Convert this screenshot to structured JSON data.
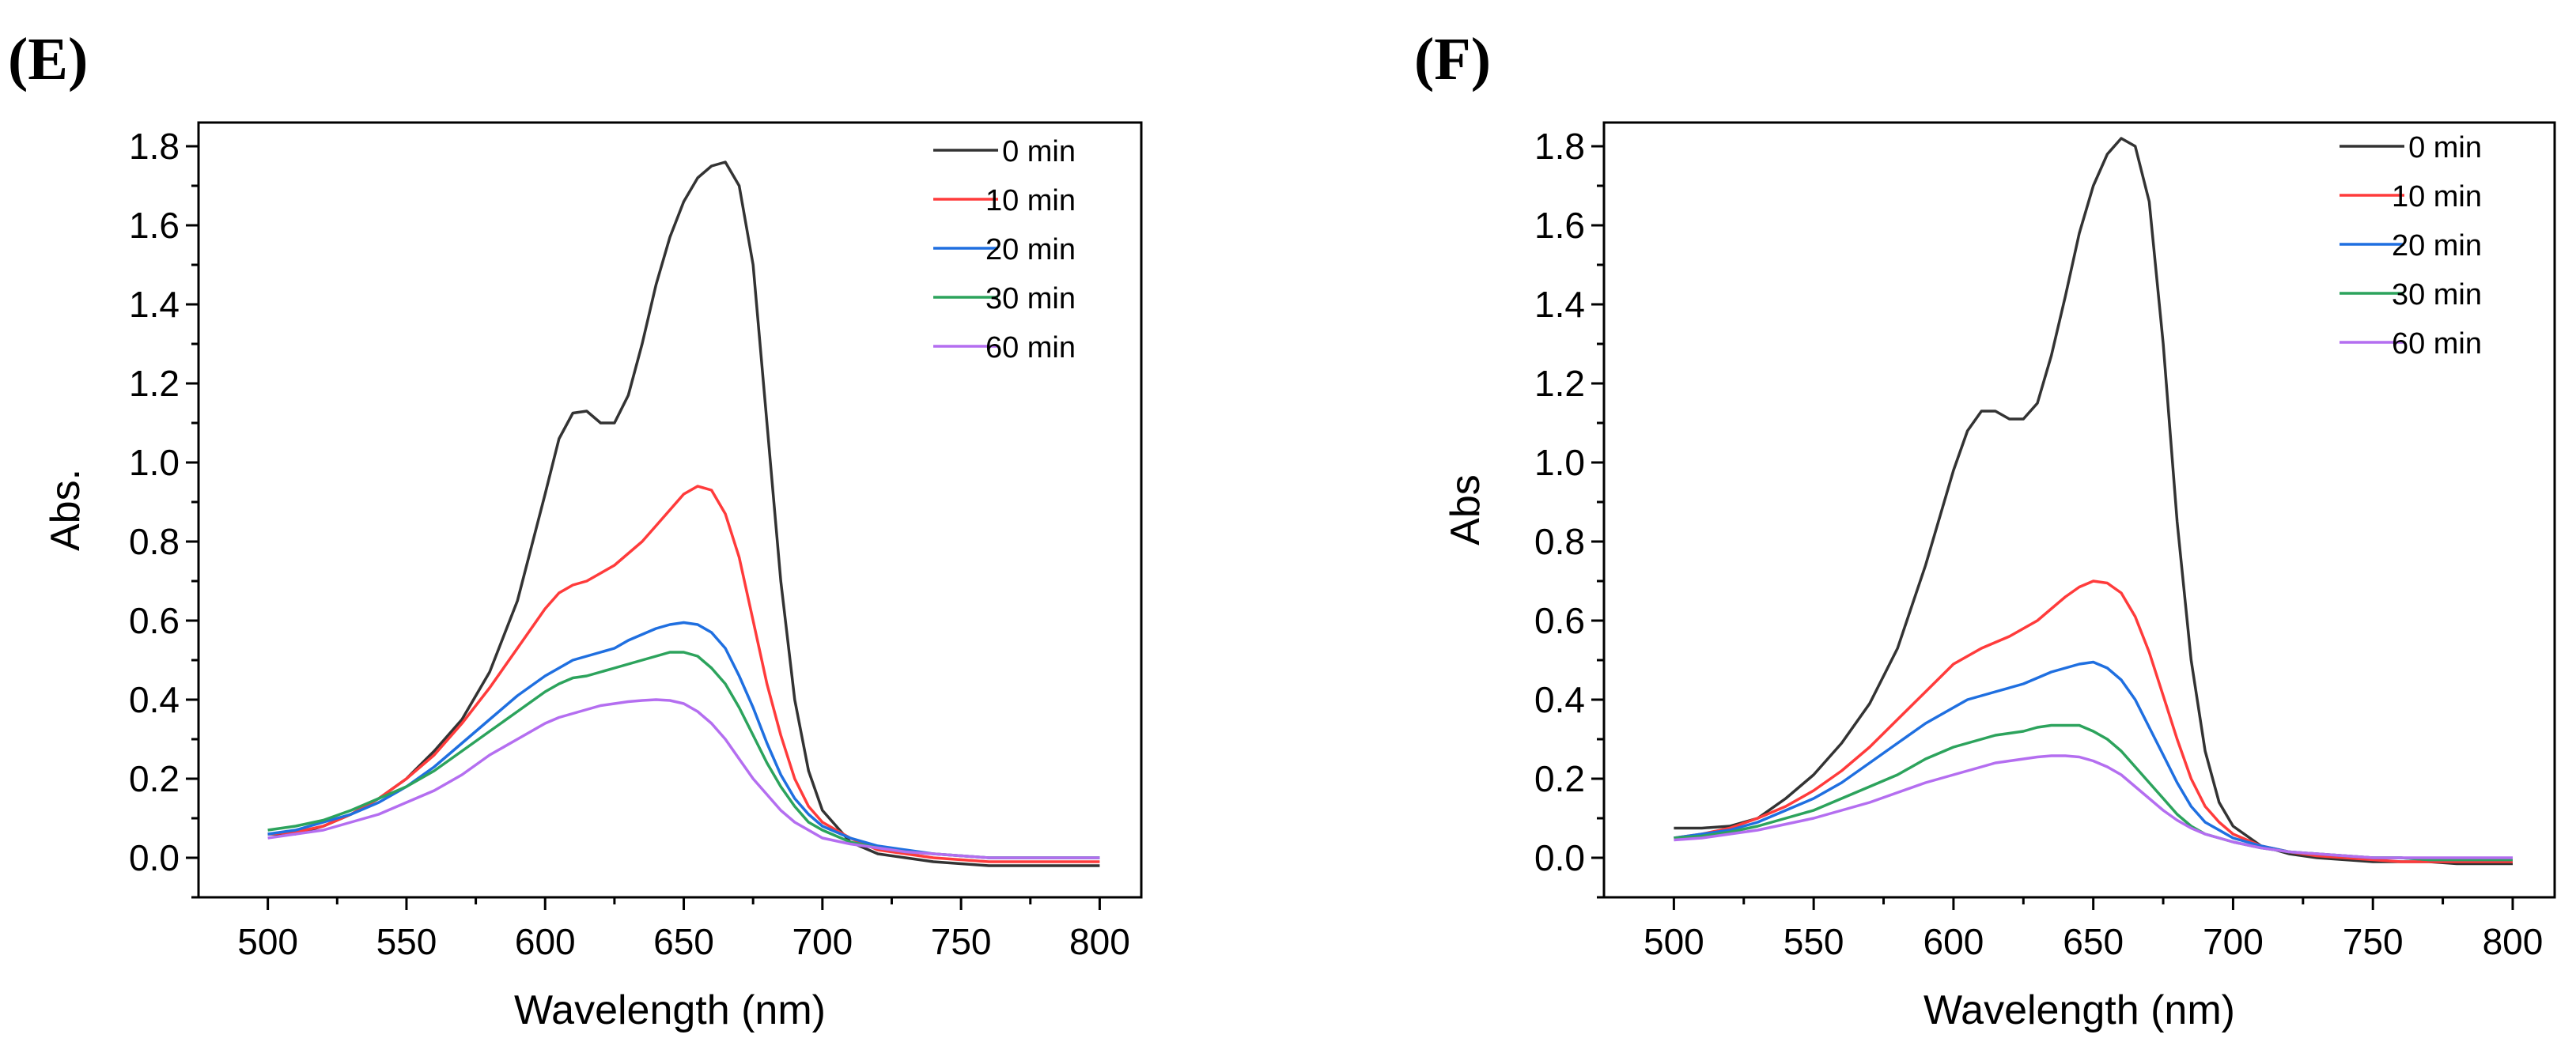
{
  "panels": {
    "e": {
      "label": "(E)"
    },
    "f": {
      "label": "(F)"
    }
  },
  "chart_data": [
    {
      "type": "line",
      "panel": "(E)",
      "xlabel": "Wavelength (nm)",
      "ylabel": "Abs.",
      "xlim": [
        475,
        815
      ],
      "ylim": [
        -0.1,
        1.86
      ],
      "xticks": [
        500,
        550,
        600,
        650,
        700,
        750,
        800
      ],
      "yticks": [
        0.0,
        0.2,
        0.4,
        0.6,
        0.8,
        1.0,
        1.2,
        1.4,
        1.6,
        1.8
      ],
      "x": [
        500,
        510,
        520,
        530,
        540,
        550,
        560,
        570,
        580,
        590,
        600,
        605,
        610,
        615,
        620,
        625,
        630,
        635,
        640,
        645,
        650,
        655,
        660,
        665,
        670,
        675,
        680,
        685,
        690,
        695,
        700,
        710,
        720,
        730,
        740,
        750,
        760,
        770,
        780,
        790,
        800
      ],
      "series": [
        {
          "name": "0 min",
          "color": "#333333",
          "values": [
            0.06,
            0.06,
            0.08,
            0.11,
            0.15,
            0.2,
            0.27,
            0.35,
            0.47,
            0.65,
            0.92,
            1.06,
            1.125,
            1.13,
            1.1,
            1.1,
            1.17,
            1.3,
            1.45,
            1.57,
            1.66,
            1.72,
            1.75,
            1.76,
            1.7,
            1.5,
            1.1,
            0.7,
            0.4,
            0.22,
            0.12,
            0.04,
            0.01,
            0.0,
            -0.01,
            -0.015,
            -0.02,
            -0.02,
            -0.02,
            -0.02,
            -0.02
          ]
        },
        {
          "name": "10 min",
          "color": "#ff3b3b",
          "values": [
            0.06,
            0.065,
            0.08,
            0.11,
            0.15,
            0.2,
            0.26,
            0.34,
            0.43,
            0.53,
            0.63,
            0.67,
            0.69,
            0.7,
            0.72,
            0.74,
            0.77,
            0.8,
            0.84,
            0.88,
            0.92,
            0.94,
            0.93,
            0.87,
            0.76,
            0.6,
            0.44,
            0.31,
            0.2,
            0.13,
            0.09,
            0.05,
            0.02,
            0.01,
            0.0,
            -0.005,
            -0.01,
            -0.01,
            -0.01,
            -0.01,
            -0.01
          ]
        },
        {
          "name": "20 min",
          "color": "#1f6fe0",
          "values": [
            0.06,
            0.07,
            0.09,
            0.11,
            0.14,
            0.18,
            0.23,
            0.29,
            0.35,
            0.41,
            0.46,
            0.48,
            0.5,
            0.51,
            0.52,
            0.53,
            0.55,
            0.565,
            0.58,
            0.59,
            0.595,
            0.59,
            0.57,
            0.53,
            0.46,
            0.38,
            0.29,
            0.21,
            0.15,
            0.11,
            0.08,
            0.05,
            0.03,
            0.02,
            0.01,
            0.005,
            0.0,
            0.0,
            0.0,
            0.0,
            0.0
          ]
        },
        {
          "name": "30 min",
          "color": "#2ca35c",
          "values": [
            0.07,
            0.08,
            0.095,
            0.12,
            0.15,
            0.18,
            0.22,
            0.27,
            0.32,
            0.37,
            0.42,
            0.44,
            0.455,
            0.46,
            0.47,
            0.48,
            0.49,
            0.5,
            0.51,
            0.52,
            0.52,
            0.51,
            0.48,
            0.44,
            0.38,
            0.31,
            0.24,
            0.18,
            0.13,
            0.09,
            0.07,
            0.04,
            0.025,
            0.015,
            0.01,
            0.005,
            0.0,
            0.0,
            0.0,
            0.0,
            0.0
          ]
        },
        {
          "name": "60 min",
          "color": "#b46ef0",
          "values": [
            0.05,
            0.06,
            0.07,
            0.09,
            0.11,
            0.14,
            0.17,
            0.21,
            0.26,
            0.3,
            0.34,
            0.355,
            0.365,
            0.375,
            0.385,
            0.39,
            0.395,
            0.398,
            0.4,
            0.398,
            0.39,
            0.37,
            0.34,
            0.3,
            0.25,
            0.2,
            0.16,
            0.12,
            0.09,
            0.07,
            0.05,
            0.035,
            0.025,
            0.015,
            0.01,
            0.005,
            0.0,
            0.0,
            0.0,
            0.0,
            0.0
          ]
        }
      ]
    },
    {
      "type": "line",
      "panel": "(F)",
      "xlabel": "Wavelength (nm)",
      "ylabel": "Abs",
      "xlim": [
        475,
        815
      ],
      "ylim": [
        -0.1,
        1.86
      ],
      "xticks": [
        500,
        550,
        600,
        650,
        700,
        750,
        800
      ],
      "yticks": [
        0.0,
        0.2,
        0.4,
        0.6,
        0.8,
        1.0,
        1.2,
        1.4,
        1.6,
        1.8
      ],
      "x": [
        500,
        510,
        520,
        530,
        540,
        550,
        560,
        570,
        580,
        590,
        600,
        605,
        610,
        615,
        620,
        625,
        630,
        635,
        640,
        645,
        650,
        655,
        660,
        665,
        670,
        675,
        680,
        685,
        690,
        695,
        700,
        710,
        720,
        730,
        740,
        750,
        760,
        770,
        780,
        790,
        800
      ],
      "series": [
        {
          "name": "0 min",
          "color": "#333333",
          "values": [
            0.075,
            0.075,
            0.08,
            0.1,
            0.15,
            0.21,
            0.29,
            0.39,
            0.53,
            0.74,
            0.98,
            1.08,
            1.13,
            1.13,
            1.11,
            1.11,
            1.15,
            1.27,
            1.42,
            1.58,
            1.7,
            1.78,
            1.82,
            1.8,
            1.66,
            1.3,
            0.85,
            0.5,
            0.27,
            0.14,
            0.08,
            0.03,
            0.01,
            0.0,
            -0.005,
            -0.01,
            -0.01,
            -0.01,
            -0.015,
            -0.015,
            -0.015
          ]
        },
        {
          "name": "10 min",
          "color": "#ff3b3b",
          "values": [
            0.05,
            0.06,
            0.075,
            0.1,
            0.13,
            0.17,
            0.22,
            0.28,
            0.35,
            0.42,
            0.49,
            0.51,
            0.53,
            0.545,
            0.56,
            0.58,
            0.6,
            0.63,
            0.66,
            0.685,
            0.7,
            0.695,
            0.67,
            0.61,
            0.52,
            0.41,
            0.3,
            0.2,
            0.13,
            0.09,
            0.06,
            0.03,
            0.015,
            0.005,
            0.0,
            -0.005,
            -0.01,
            -0.01,
            -0.01,
            -0.01,
            -0.01
          ]
        },
        {
          "name": "20 min",
          "color": "#1f6fe0",
          "values": [
            0.05,
            0.06,
            0.07,
            0.09,
            0.12,
            0.15,
            0.19,
            0.24,
            0.29,
            0.34,
            0.38,
            0.4,
            0.41,
            0.42,
            0.43,
            0.44,
            0.455,
            0.47,
            0.48,
            0.49,
            0.495,
            0.48,
            0.45,
            0.4,
            0.33,
            0.26,
            0.19,
            0.13,
            0.09,
            0.07,
            0.05,
            0.03,
            0.015,
            0.01,
            0.005,
            0.0,
            0.0,
            -0.005,
            -0.005,
            -0.005,
            -0.005
          ]
        },
        {
          "name": "30 min",
          "color": "#2ca35c",
          "values": [
            0.05,
            0.055,
            0.065,
            0.08,
            0.1,
            0.12,
            0.15,
            0.18,
            0.21,
            0.25,
            0.28,
            0.29,
            0.3,
            0.31,
            0.315,
            0.32,
            0.33,
            0.335,
            0.335,
            0.335,
            0.32,
            0.3,
            0.27,
            0.23,
            0.19,
            0.15,
            0.11,
            0.08,
            0.06,
            0.05,
            0.04,
            0.025,
            0.015,
            0.01,
            0.005,
            0.0,
            0.0,
            -0.005,
            -0.005,
            -0.005,
            -0.005
          ]
        },
        {
          "name": "60 min",
          "color": "#b46ef0",
          "values": [
            0.045,
            0.05,
            0.06,
            0.07,
            0.085,
            0.1,
            0.12,
            0.14,
            0.165,
            0.19,
            0.21,
            0.22,
            0.23,
            0.24,
            0.245,
            0.25,
            0.255,
            0.258,
            0.258,
            0.255,
            0.245,
            0.23,
            0.21,
            0.18,
            0.15,
            0.12,
            0.095,
            0.075,
            0.06,
            0.05,
            0.04,
            0.025,
            0.015,
            0.01,
            0.005,
            0.0,
            0.0,
            0.0,
            0.0,
            0.0,
            0.0
          ]
        }
      ]
    }
  ]
}
